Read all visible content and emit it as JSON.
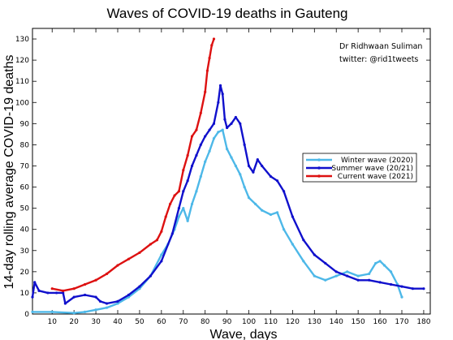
{
  "chart_data": {
    "type": "line",
    "title": "Waves of COVID-19 deaths in Gauteng",
    "xlabel": "Wave, days",
    "ylabel": "14-day rolling average COVID-19 deaths",
    "xlim": [
      1,
      183
    ],
    "ylim": [
      0,
      135
    ],
    "xticks": [
      10,
      20,
      30,
      40,
      50,
      60,
      70,
      80,
      90,
      100,
      110,
      120,
      130,
      140,
      150,
      160,
      170,
      180
    ],
    "yticks": [
      0,
      10,
      20,
      30,
      40,
      50,
      60,
      70,
      80,
      90,
      100,
      110,
      120,
      130
    ],
    "grid": false,
    "legend_position": "right",
    "annotations": [
      "Dr Ridhwaan Suliman",
      "twitter: @rid1tweets"
    ],
    "series": [
      {
        "name": "Winter wave (2020)",
        "color": "#4db8e8",
        "x": [
          1,
          10,
          20,
          25,
          30,
          35,
          40,
          45,
          50,
          55,
          60,
          63,
          66,
          68,
          70,
          72,
          74,
          76,
          78,
          80,
          82,
          84,
          86,
          88,
          90,
          92,
          94,
          96,
          98,
          100,
          103,
          106,
          110,
          113,
          116,
          120,
          125,
          130,
          135,
          140,
          145,
          150,
          155,
          158,
          160,
          162,
          165,
          168,
          170
        ],
        "values": [
          1,
          1,
          0.5,
          1,
          2,
          3,
          5,
          8,
          12,
          18,
          28,
          33,
          40,
          46,
          50,
          44,
          52,
          58,
          65,
          72,
          77,
          83,
          86,
          87,
          78,
          74,
          70,
          66,
          60,
          55,
          52,
          49,
          47,
          48,
          40,
          33,
          25,
          18,
          16,
          18,
          20,
          18,
          19,
          24,
          25,
          23,
          20,
          14,
          8
        ]
      },
      {
        "name": "Summer wave (20/21)",
        "color": "#1010cc",
        "x": [
          1,
          2,
          4,
          8,
          12,
          15,
          16,
          20,
          25,
          30,
          32,
          35,
          40,
          45,
          50,
          55,
          60,
          65,
          68,
          70,
          72,
          74,
          76,
          78,
          80,
          82,
          84,
          86,
          87,
          88,
          89,
          90,
          92,
          94,
          96,
          98,
          100,
          102,
          104,
          106,
          110,
          113,
          116,
          120,
          125,
          130,
          135,
          140,
          145,
          150,
          155,
          160,
          165,
          170,
          175,
          180
        ],
        "values": [
          8,
          15,
          11,
          10,
          10,
          10,
          5,
          8,
          9,
          8,
          6,
          5,
          6,
          9,
          13,
          18,
          25,
          38,
          50,
          58,
          63,
          70,
          75,
          80,
          84,
          87,
          90,
          100,
          108,
          104,
          92,
          88,
          90,
          93,
          90,
          80,
          70,
          67,
          73,
          70,
          65,
          63,
          58,
          46,
          35,
          28,
          24,
          20,
          18,
          16,
          16,
          15,
          14,
          13,
          12,
          12
        ]
      },
      {
        "name": "Current wave (2021)",
        "color": "#dd1111",
        "x": [
          10,
          15,
          20,
          25,
          30,
          35,
          40,
          45,
          50,
          55,
          58,
          60,
          62,
          64,
          66,
          68,
          70,
          72,
          74,
          76,
          78,
          80,
          81,
          82,
          83,
          84
        ],
        "values": [
          12,
          11,
          12,
          14,
          16,
          19,
          23,
          26,
          29,
          33,
          35,
          39,
          46,
          52,
          56,
          58,
          68,
          75,
          84,
          87,
          95,
          105,
          115,
          121,
          127,
          130
        ]
      }
    ]
  }
}
